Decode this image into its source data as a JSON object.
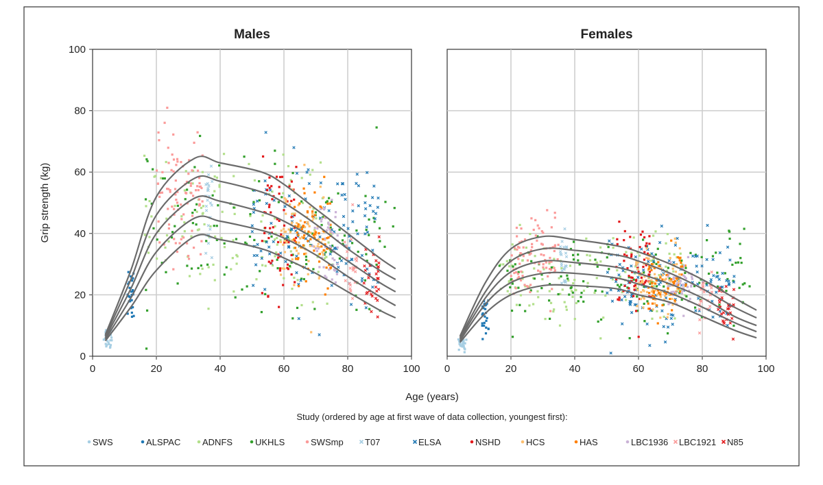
{
  "chart_data": {
    "type": "scatter",
    "xlabel": "Age (years)",
    "ylabel": "Grip strength (kg)",
    "xlim": [
      0,
      100
    ],
    "ylim": [
      0,
      100
    ],
    "xticks": [
      "0",
      "20",
      "40",
      "60",
      "80",
      "100"
    ],
    "yticks": [
      "0",
      "20",
      "40",
      "60",
      "80",
      "100"
    ],
    "grid": true,
    "legend_title": "Study (ordered by age at first wave of data collection, youngest first):",
    "legend_position": "bottom",
    "studies": [
      {
        "name": "SWS",
        "color": "#a6cee3",
        "marker": "dot",
        "age": [
          3.5,
          6
        ],
        "center": 6,
        "spread": 2
      },
      {
        "name": "ALSPAC",
        "color": "#1f78b4",
        "marker": "dot",
        "age": [
          11,
          13
        ],
        "center": 22,
        "spread": 5
      },
      {
        "name": "ADNFS",
        "color": "#b2df8a",
        "marker": "dot",
        "age": [
          16,
          75
        ],
        "center": 42,
        "spread": 11
      },
      {
        "name": "UKHLS",
        "color": "#33a02c",
        "marker": "dot",
        "age": [
          16,
          95
        ],
        "center": 40,
        "spread": 12
      },
      {
        "name": "SWSmp",
        "color": "#fb9a99",
        "marker": "dot",
        "age": [
          20,
          35
        ],
        "center": 52,
        "spread": 9
      },
      {
        "name": "T07",
        "color": "#a6cee3",
        "marker": "x",
        "age": [
          35.5,
          37.5
        ],
        "center": 50,
        "spread": 9
      },
      {
        "name": "ELSA",
        "color": "#1f78b4",
        "marker": "x",
        "age": [
          50,
          90
        ],
        "center": 40,
        "spread": 11
      },
      {
        "name": "NSHD",
        "color": "#e31a1c",
        "marker": "dot",
        "age": [
          53,
          64
        ],
        "center": 44,
        "spread": 11
      },
      {
        "name": "HCS",
        "color": "#fdbf6f",
        "marker": "dot",
        "age": [
          59,
          73
        ],
        "center": 40,
        "spread": 8
      },
      {
        "name": "HAS",
        "color": "#ff7f00",
        "marker": "dot",
        "age": [
          63,
          75
        ],
        "center": 38,
        "spread": 8
      },
      {
        "name": "LBC1936",
        "color": "#cab2d6",
        "marker": "dot",
        "age": [
          69,
          77
        ],
        "center": 36,
        "spread": 7
      },
      {
        "name": "LBC1921",
        "color": "#fb9a99",
        "marker": "x",
        "age": [
          79,
          83
        ],
        "center": 30,
        "spread": 7
      },
      {
        "name": "N85",
        "color": "#e31a1c",
        "marker": "x",
        "age": [
          85,
          90
        ],
        "center": 26,
        "spread": 7
      }
    ],
    "panels": [
      {
        "title": "Males",
        "scale": 1.0,
        "centile_ages": [
          4,
          12,
          20,
          32,
          40,
          53,
          60,
          70,
          80,
          90,
          95
        ],
        "centiles": [
          [
            7,
            28,
            52,
            64.5,
            63,
            60,
            56,
            48,
            40,
            32,
            28.5
          ],
          [
            6.5,
            25,
            46,
            58,
            57,
            53.5,
            50,
            43,
            35,
            28,
            25
          ],
          [
            6,
            22,
            40,
            51.5,
            50.5,
            47,
            44,
            38,
            31,
            24,
            21
          ],
          [
            5.5,
            19,
            34,
            45,
            44,
            41,
            38.5,
            33,
            26,
            19.5,
            16.5
          ],
          [
            5,
            16,
            28,
            39,
            38,
            35,
            32,
            27,
            21,
            15,
            12.5
          ]
        ]
      },
      {
        "title": "Females",
        "scale": 0.62,
        "centile_ages": [
          4,
          12,
          20,
          30,
          40,
          53,
          60,
          70,
          80,
          90,
          97
        ],
        "centiles": [
          [
            6.5,
            24,
            35,
            39,
            38,
            36,
            34,
            30,
            25,
            19,
            15
          ],
          [
            6,
            21,
            31,
            35,
            34.5,
            33,
            31,
            27,
            22,
            16,
            12.5
          ],
          [
            5.5,
            19,
            27.5,
            31,
            30.5,
            29,
            27,
            23.5,
            19,
            13,
            10
          ],
          [
            5,
            17,
            24,
            27,
            27,
            25.5,
            23.5,
            20.5,
            16,
            11,
            8
          ],
          [
            4.5,
            14,
            20,
            23,
            23,
            22,
            20,
            17.5,
            13,
            8.5,
            6
          ]
        ]
      }
    ],
    "curve_color": "#6b6b6b"
  }
}
